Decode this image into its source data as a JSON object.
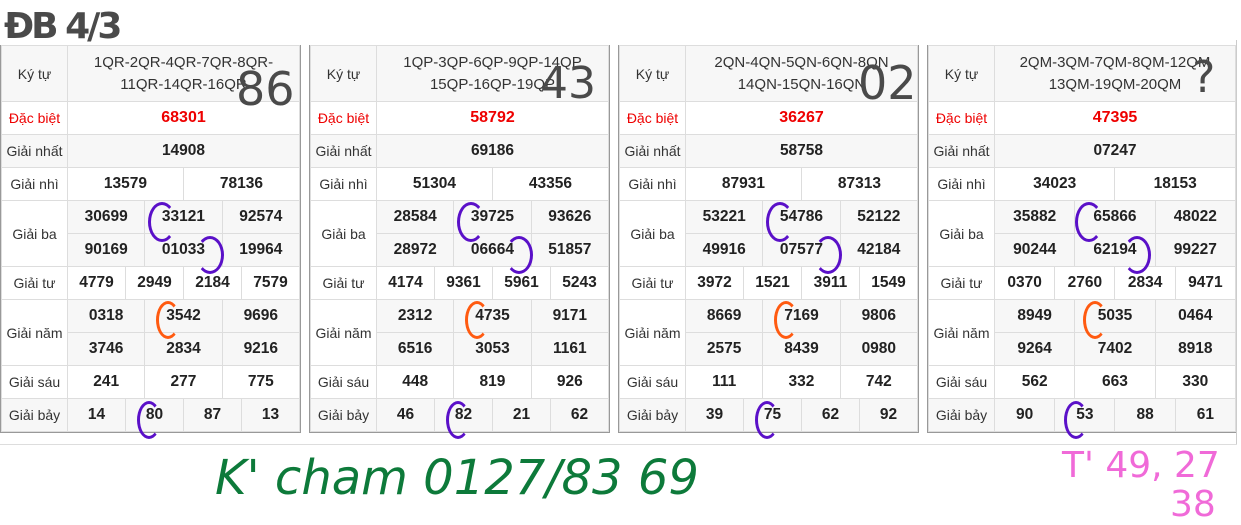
{
  "labels": {
    "ky_tu": "Ký tự",
    "dac_biet": "Đặc biệt",
    "giai_nhat": "Giải nhất",
    "giai_nhi": "Giải nhì",
    "giai_ba": "Giải ba",
    "giai_tu": "Giải tư",
    "giai_nam": "Giải năm",
    "giai_sau": "Giải sáu",
    "giai_bay": "Giải bảy"
  },
  "colors": {
    "special": "#ee0000",
    "annotation_gray": "#4a4a4a",
    "annotation_green": "#0d7a3a",
    "annotation_pink": "#f06ad8",
    "circle_purple": "#5a10c8",
    "circle_orange": "#ff5a10"
  },
  "results": [
    {
      "ky_tu": [
        "1QR-2QR-4QR-7QR-8QR-",
        "11QR-14QR-16QR"
      ],
      "dac_biet": "68301",
      "giai_nhat": "14908",
      "giai_nhi": [
        "13579",
        "78136"
      ],
      "giai_ba": [
        [
          "30699",
          "33121",
          "92574"
        ],
        [
          "90169",
          "01033",
          "19964"
        ]
      ],
      "giai_tu": [
        "4779",
        "2949",
        "2184",
        "7579"
      ],
      "giai_nam": [
        [
          "0318",
          "3542",
          "9696"
        ],
        [
          "3746",
          "2834",
          "9216"
        ]
      ],
      "giai_sau": [
        "241",
        "277",
        "775"
      ],
      "giai_bay": [
        "14",
        "80",
        "87",
        "13"
      ]
    },
    {
      "ky_tu": [
        "1QP-3QP-6QP-9QP-14QP",
        "15QP-16QP-19QP"
      ],
      "dac_biet": "58792",
      "giai_nhat": "69186",
      "giai_nhi": [
        "51304",
        "43356"
      ],
      "giai_ba": [
        [
          "28584",
          "39725",
          "93626"
        ],
        [
          "28972",
          "06664",
          "51857"
        ]
      ],
      "giai_tu": [
        "4174",
        "9361",
        "5961",
        "5243"
      ],
      "giai_nam": [
        [
          "2312",
          "4735",
          "9171"
        ],
        [
          "6516",
          "3053",
          "1161"
        ]
      ],
      "giai_sau": [
        "448",
        "819",
        "926"
      ],
      "giai_bay": [
        "46",
        "82",
        "21",
        "62"
      ]
    },
    {
      "ky_tu": [
        "2QN-4QN-5QN-6QN-8QN",
        "14QN-15QN-16QN"
      ],
      "dac_biet": "36267",
      "giai_nhat": "58758",
      "giai_nhi": [
        "87931",
        "87313"
      ],
      "giai_ba": [
        [
          "53221",
          "54786",
          "52122"
        ],
        [
          "49916",
          "07577",
          "42184"
        ]
      ],
      "giai_tu": [
        "3972",
        "1521",
        "3911",
        "1549"
      ],
      "giai_nam": [
        [
          "8669",
          "7169",
          "9806"
        ],
        [
          "2575",
          "8439",
          "0980"
        ]
      ],
      "giai_sau": [
        "111",
        "332",
        "742"
      ],
      "giai_bay": [
        "39",
        "75",
        "62",
        "92"
      ]
    },
    {
      "ky_tu": [
        "2QM-3QM-7QM-8QM-12QM",
        "13QM-19QM-20QM"
      ],
      "dac_biet": "47395",
      "giai_nhat": "07247",
      "giai_nhi": [
        "34023",
        "18153"
      ],
      "giai_ba": [
        [
          "35882",
          "65866",
          "48022"
        ],
        [
          "90244",
          "62194",
          "99227"
        ]
      ],
      "giai_tu": [
        "0370",
        "2760",
        "2834",
        "9471"
      ],
      "giai_nam": [
        [
          "8949",
          "5035",
          "0464"
        ],
        [
          "9264",
          "7402",
          "8918"
        ]
      ],
      "giai_sau": [
        "562",
        "663",
        "330"
      ],
      "giai_bay": [
        "90",
        "53",
        "88",
        "61"
      ]
    }
  ],
  "annotations": {
    "top_left": "ĐB 4/3",
    "panel1": "86",
    "panel2": "43",
    "panel3": "02",
    "panel4": "?",
    "bottom_left": "K' cham 0127/83 69",
    "bottom_right_line1": "T' 49, 27",
    "bottom_right_line2": "38"
  }
}
